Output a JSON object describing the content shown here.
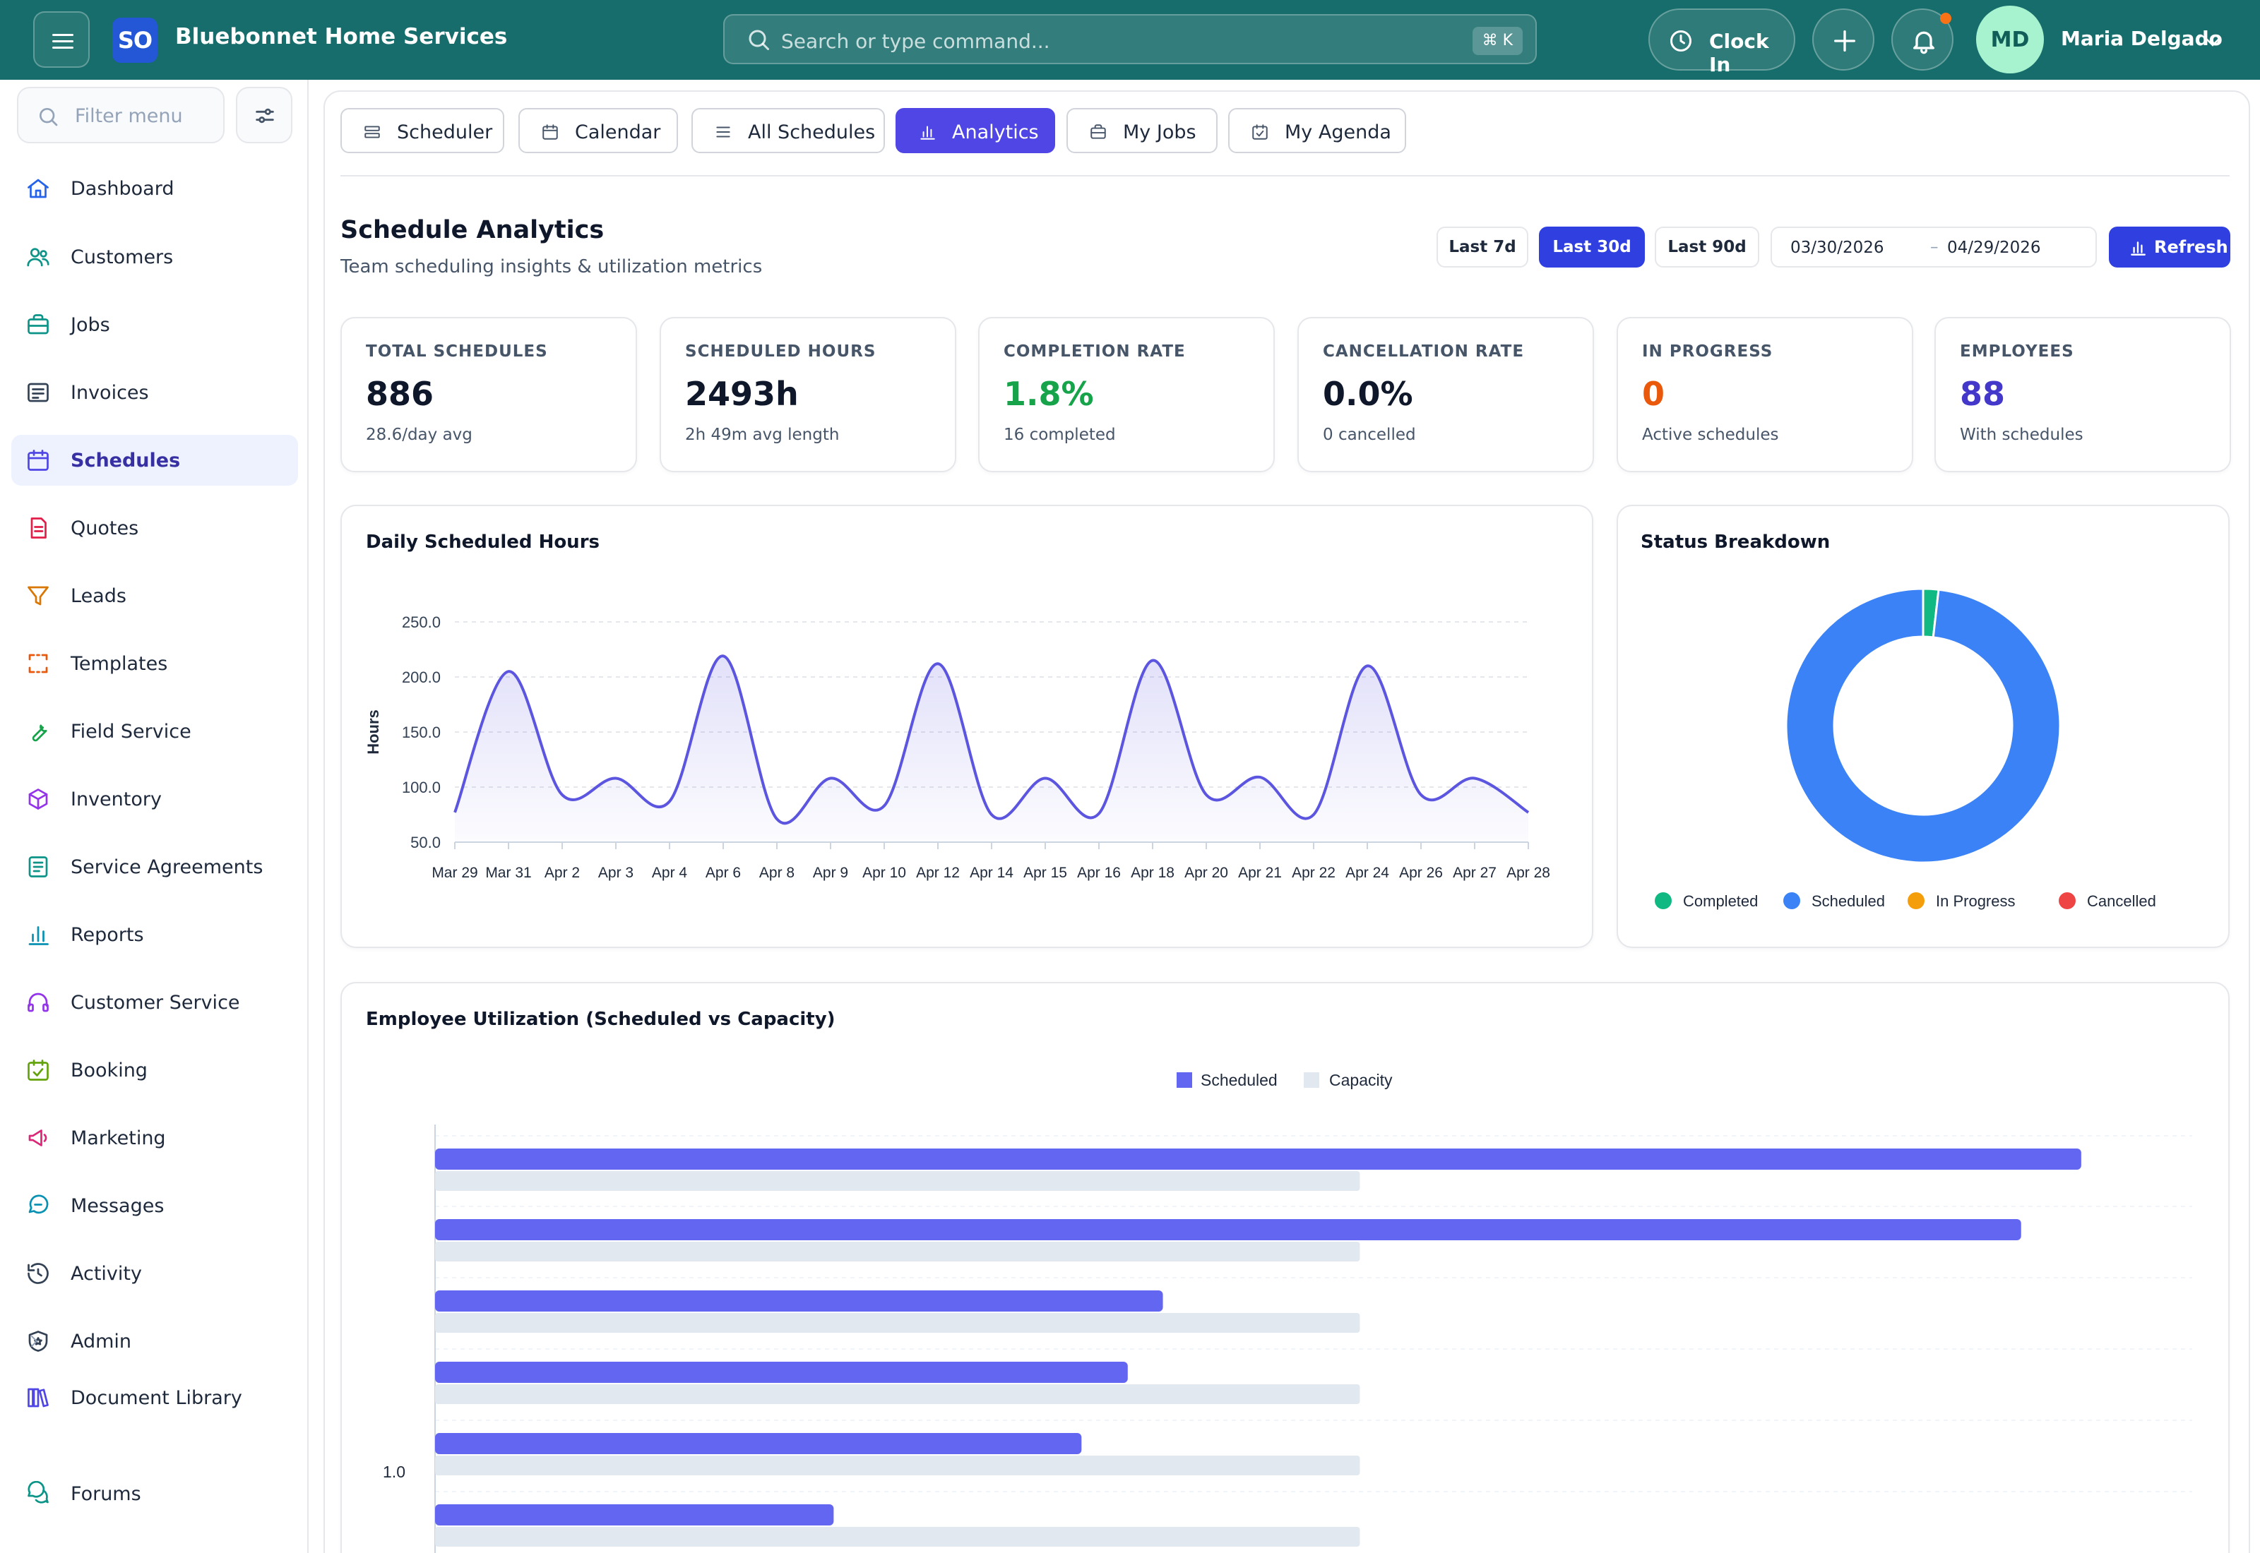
{
  "app": {
    "logo": "SO",
    "name": "Bluebonnet Home Services",
    "search_placeholder": "Search or type command...",
    "search_shortcut": "⌘ K",
    "clock_in": "Clock In",
    "user_initials": "MD",
    "user_name": "Maria Delgado"
  },
  "sidebar": {
    "filter_placeholder": "Filter menu",
    "items": [
      {
        "label": "Dashboard",
        "icon": "home-icon",
        "color": "#2563eb"
      },
      {
        "label": "Customers",
        "icon": "users-icon",
        "color": "#0d9488"
      },
      {
        "label": "Jobs",
        "icon": "briefcase-icon",
        "color": "#0d9488"
      },
      {
        "label": "Invoices",
        "icon": "invoice-icon",
        "color": "#334155"
      },
      {
        "label": "Schedules",
        "icon": "calendar-icon",
        "color": "#4f46e5",
        "active": true
      },
      {
        "label": "Quotes",
        "icon": "quote-icon",
        "color": "#e11d48"
      },
      {
        "label": "Leads",
        "icon": "funnel-icon",
        "color": "#d97706"
      },
      {
        "label": "Templates",
        "icon": "template-icon",
        "color": "#ea580c"
      },
      {
        "label": "Field Service",
        "icon": "wrench-icon",
        "color": "#16a34a"
      },
      {
        "label": "Inventory",
        "icon": "box-icon",
        "color": "#9333ea"
      },
      {
        "label": "Service Agreements",
        "icon": "agreement-icon",
        "color": "#0d9488"
      },
      {
        "label": "Reports",
        "icon": "bar-chart-icon",
        "color": "#0891b2"
      },
      {
        "label": "Customer Service",
        "icon": "headset-icon",
        "color": "#9333ea"
      },
      {
        "label": "Booking",
        "icon": "calendar-check-icon",
        "color": "#65a30d"
      },
      {
        "label": "Marketing",
        "icon": "megaphone-icon",
        "color": "#db2777"
      },
      {
        "label": "Messages",
        "icon": "chat-icon",
        "color": "#0891b2"
      },
      {
        "label": "Activity",
        "icon": "history-icon",
        "color": "#334155"
      },
      {
        "label": "Admin",
        "icon": "shield-icon",
        "color": "#334155"
      },
      {
        "label": "Document Library",
        "icon": "books-icon",
        "color": "#4f46e5"
      },
      {
        "label": "Forums",
        "icon": "forum-icon",
        "color": "#0d9488"
      }
    ]
  },
  "tabs": [
    {
      "label": "Scheduler",
      "icon": "list-rows-icon"
    },
    {
      "label": "Calendar",
      "icon": "calendar-icon"
    },
    {
      "label": "All Schedules",
      "icon": "list-icon"
    },
    {
      "label": "Analytics",
      "icon": "bar-chart-icon",
      "active": true
    },
    {
      "label": "My Jobs",
      "icon": "briefcase-icon"
    },
    {
      "label": "My Agenda",
      "icon": "calendar-check-icon"
    }
  ],
  "header": {
    "title": "Schedule Analytics",
    "subtitle": "Team scheduling insights & utilization metrics",
    "ranges": [
      "Last 7d",
      "Last 30d",
      "Last 90d"
    ],
    "active_range": "Last 30d",
    "date_from": "03/30/2026",
    "date_sep": "–",
    "date_to": "04/29/2026",
    "refresh": "Refresh"
  },
  "kpis": [
    {
      "label": "TOTAL SCHEDULES",
      "value": "886",
      "sub": "28.6/day avg",
      "color": "#0f172a"
    },
    {
      "label": "SCHEDULED HOURS",
      "value": "2493h",
      "sub": "2h 49m avg length",
      "color": "#0f172a"
    },
    {
      "label": "COMPLETION RATE",
      "value": "1.8%",
      "sub": "16 completed",
      "color": "#16a34a"
    },
    {
      "label": "CANCELLATION RATE",
      "value": "0.0%",
      "sub": "0 cancelled",
      "color": "#0f172a"
    },
    {
      "label": "IN PROGRESS",
      "value": "0",
      "sub": "Active schedules",
      "color": "#ea580c"
    },
    {
      "label": "EMPLOYEES",
      "value": "88",
      "sub": "With schedules",
      "color": "#4338ca"
    }
  ],
  "chart_data": [
    {
      "type": "area",
      "title": "Daily Scheduled Hours",
      "ylabel": "Hours",
      "xlabel": "",
      "ylim": [
        50,
        250
      ],
      "yticks": [
        "250.0",
        "200.0",
        "150.0",
        "100.0",
        "50.0"
      ],
      "ytick_values": [
        250,
        200,
        150,
        100,
        50
      ],
      "x_tick_labels": [
        "Mar 29",
        "Mar 31",
        "Apr 2",
        "Apr 3",
        "Apr 4",
        "Apr 6",
        "Apr 8",
        "Apr 9",
        "Apr 10",
        "Apr 12",
        "Apr 14",
        "Apr 15",
        "Apr 16",
        "Apr 18",
        "Apr 20",
        "Apr 21",
        "Apr 22",
        "Apr 24",
        "Apr 26",
        "Apr 27",
        "Apr 28"
      ],
      "values": [
        77,
        205,
        93,
        108,
        87,
        219,
        71,
        108,
        83,
        212,
        75,
        108,
        76,
        215,
        93,
        109,
        75,
        210,
        93,
        108,
        77
      ],
      "color": "#5b55e0",
      "grid": true
    },
    {
      "type": "pie",
      "title": "Status Breakdown",
      "categories": [
        "Completed",
        "Scheduled",
        "In Progress",
        "Cancelled"
      ],
      "values": [
        16,
        870,
        0,
        0
      ],
      "colors": [
        "#10b981",
        "#3b82f6",
        "#f59e0b",
        "#ef4444"
      ],
      "legend": "bottom"
    },
    {
      "type": "bar",
      "orientation": "horizontal",
      "title": "Employee Utilization (Scheduled vs Capacity)",
      "legend": "top",
      "series": [
        {
          "name": "Scheduled",
          "color": "#6366f1",
          "values": [
            1.78,
            1.715,
            0.787,
            0.749,
            0.699,
            0.431
          ]
        },
        {
          "name": "Capacity",
          "color": "#e2e8f0",
          "values": [
            1.0,
            1.0,
            1.0,
            1.0,
            1.0,
            1.0
          ]
        }
      ],
      "xlim": [
        0,
        1.9
      ],
      "visible_axis_label": "1.0"
    }
  ]
}
